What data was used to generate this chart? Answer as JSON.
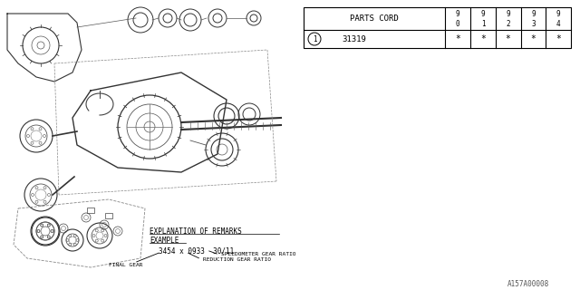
{
  "bg_color": "#ffffff",
  "border_color": "#000000",
  "parts_cord_label": "PARTS CORD",
  "part_number": "31319",
  "years_top": [
    "9",
    "9",
    "9",
    "9",
    "9"
  ],
  "years_bot": [
    "0",
    "1",
    "2",
    "3",
    "4"
  ],
  "asterisks": [
    "*",
    "*",
    "*",
    "*",
    "*"
  ],
  "explanation_title": "EXPLANATION OF REMARKS",
  "explanation_example": "EXAMPLE",
  "formula_text": "3454 x 0933  30/11",
  "label_speedometer": "SPEEDOMETER GEAR RATIO",
  "label_reduction": "REDUCTION GEAR RATIO",
  "label_final": "FINAL GEAR",
  "watermark": "A157A00008",
  "item_circle": "1",
  "text_color": "#000000",
  "table_line_color": "#000000"
}
